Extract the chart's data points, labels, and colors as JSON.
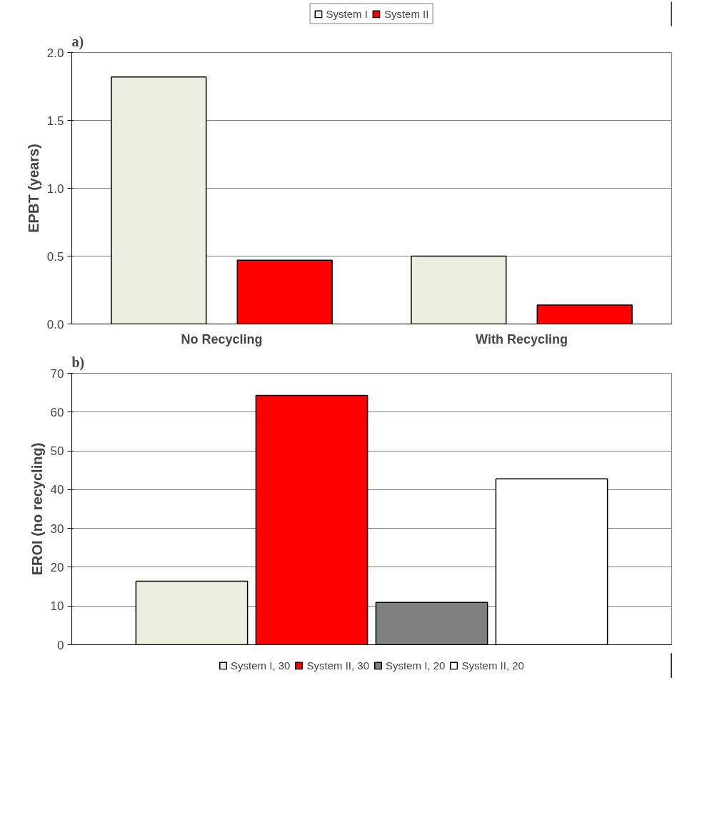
{
  "chart_data": [
    {
      "type": "bar",
      "title": "a)",
      "ylabel": "EPBT (years)",
      "categories": [
        "No Recycling",
        "With Recycling"
      ],
      "series": [
        {
          "name": "System I",
          "color": "#ecefdf",
          "values": [
            1.82,
            0.5
          ]
        },
        {
          "name": "System II",
          "color": "#ff0000",
          "values": [
            0.47,
            0.14
          ]
        }
      ],
      "ylim": [
        0,
        2.0
      ],
      "yticks": [
        {
          "value": 0,
          "label": "0.0"
        },
        {
          "value": 0.5,
          "label": "0.5"
        },
        {
          "value": 1,
          "label": "1.0"
        },
        {
          "value": 1.5,
          "label": "1.5"
        },
        {
          "value": 2,
          "label": "2.0"
        }
      ],
      "grid": "y",
      "legend": "top"
    },
    {
      "type": "bar",
      "title": "b)",
      "ylabel": "EROI (no recycling)",
      "categories": [
        null
      ],
      "series": [
        {
          "name": "System I, 30",
          "color": "#ecefdf",
          "values": [
            16.4
          ]
        },
        {
          "name": "System II, 30",
          "color": "#ff0000",
          "values": [
            64.3
          ]
        },
        {
          "name": "System I, 20",
          "color": "#808080",
          "values": [
            10.9
          ]
        },
        {
          "name": "System II, 20",
          "color": "#ffffff",
          "values": [
            42.8
          ]
        }
      ],
      "ylim": [
        0,
        70
      ],
      "yticks": [
        0,
        10,
        20,
        30,
        40,
        50,
        60,
        70
      ],
      "grid": "y",
      "legend": "bottom"
    }
  ]
}
